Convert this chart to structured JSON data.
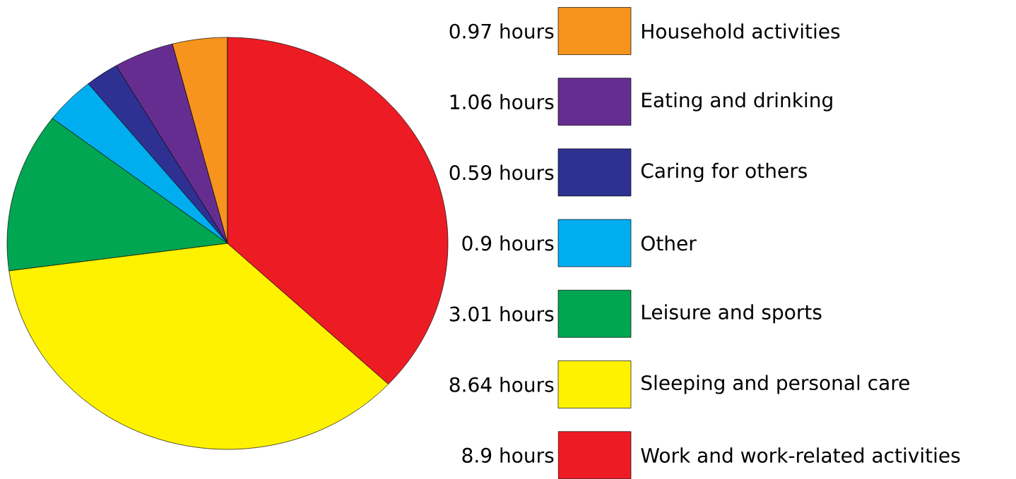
{
  "chart_data": {
    "type": "pie",
    "categories": [
      "Household activities",
      "Eating and drinking",
      "Caring for others",
      "Other",
      "Leisure and sports",
      "Sleeping and personal care",
      "Work and work-related activities"
    ],
    "values": [
      0.97,
      1.06,
      0.59,
      0.9,
      3.01,
      8.64,
      8.9
    ],
    "value_labels": [
      "0.97 hours",
      "1.06 hours",
      "0.59 hours",
      "0.9 hours",
      "3.01 hours",
      "8.64 hours",
      "8.9 hours"
    ],
    "colors": [
      "#f7941d",
      "#662d91",
      "#2e3192",
      "#00aeef",
      "#00a651",
      "#fff200",
      "#ed1c24"
    ],
    "legend": "right"
  }
}
